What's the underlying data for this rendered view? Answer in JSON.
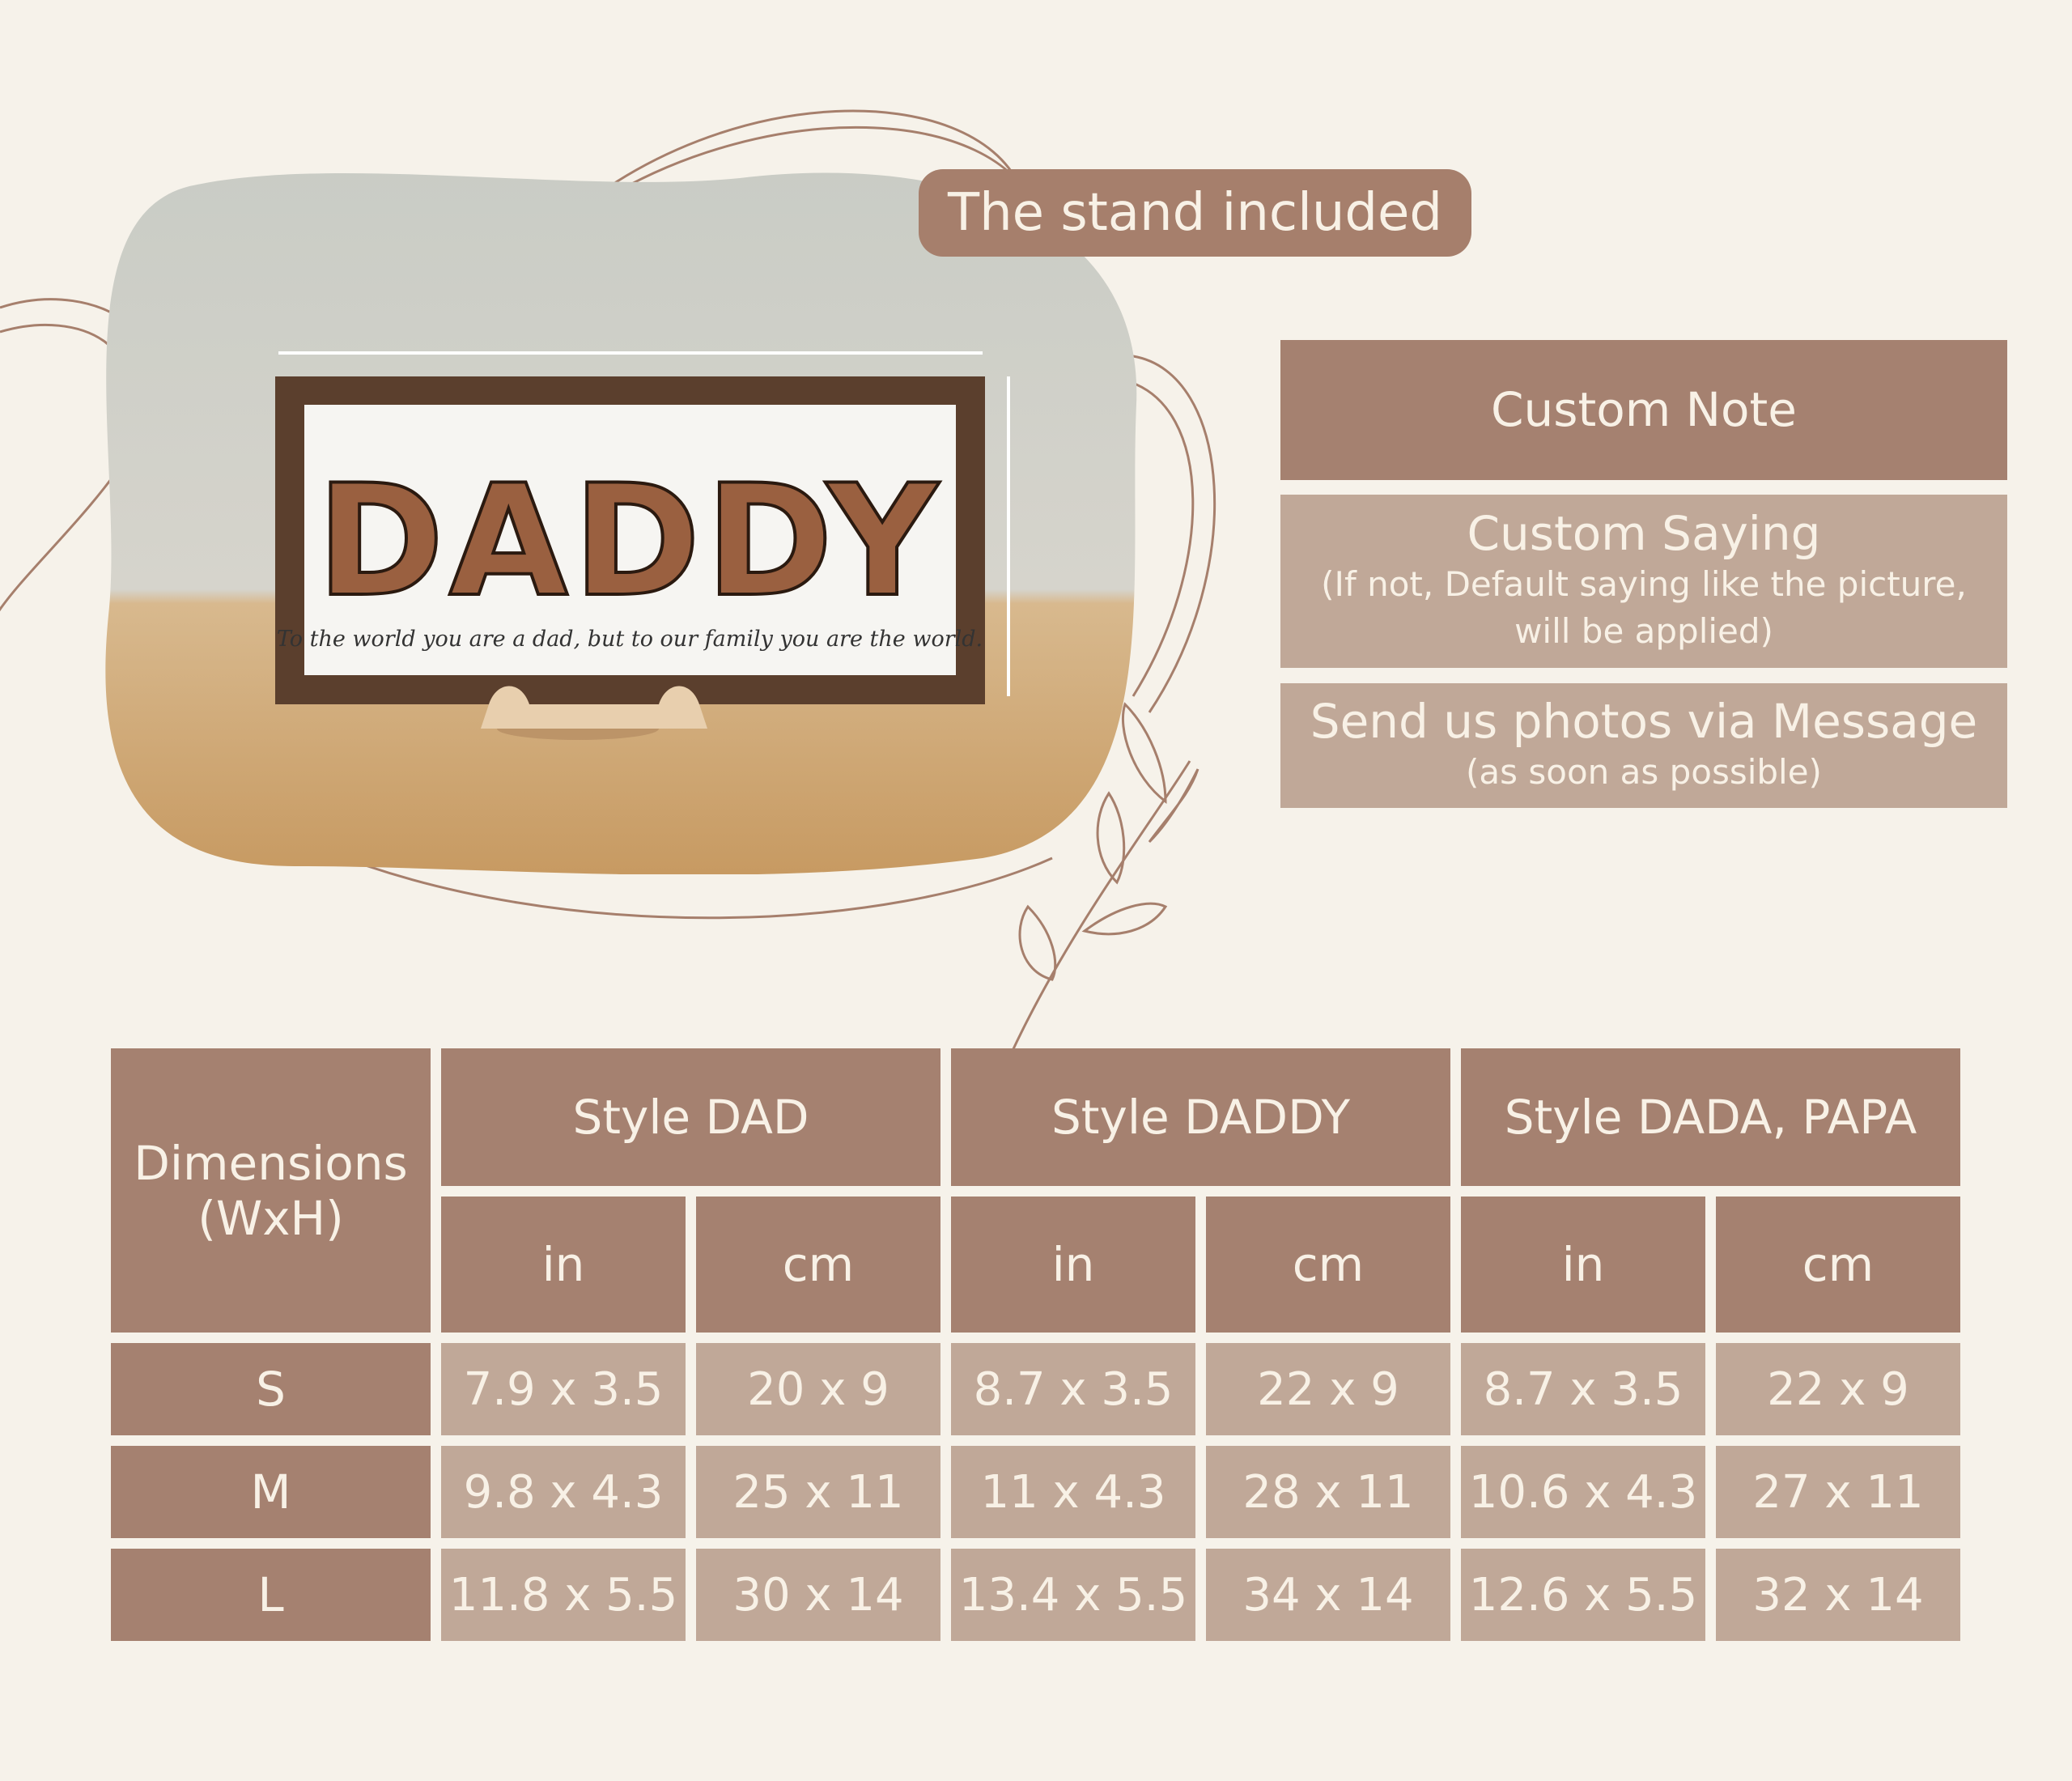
{
  "badge": {
    "text": "The stand included"
  },
  "product_photo": {
    "letters": "DADDY",
    "saying": "To the world you are a dad, but to our family you are the world."
  },
  "info_boxes": [
    {
      "title": "Custom Note"
    },
    {
      "title": "Custom Saying",
      "note": "(If not, Default saying like the picture,",
      "note2": "will be applied)"
    },
    {
      "title": "Send us photos via Message",
      "note": "(as soon as possible)"
    }
  ],
  "size_table": {
    "corner": "Dimensions (WxH)",
    "styles": [
      "Style DAD",
      "Style DADDY",
      "Style DADA, PAPA"
    ],
    "units": [
      "in",
      "cm",
      "in",
      "cm",
      "in",
      "cm"
    ],
    "rows": [
      {
        "size": "S",
        "values": [
          "7.9 x 3.5",
          "20 x 9",
          "8.7 x 3.5",
          "22 x 9",
          "8.7 x 3.5",
          "22 x 9"
        ]
      },
      {
        "size": "M",
        "values": [
          "9.8 x 4.3",
          "25 x 11",
          "11 x 4.3",
          "28 x 11",
          "10.6 x 4.3",
          "27 x 11"
        ]
      },
      {
        "size": "L",
        "values": [
          "11.8 x 5.5",
          "30 x 14",
          "13.4 x 5.5",
          "34 x 14",
          "12.6 x 5.5",
          "32 x 14"
        ]
      }
    ]
  },
  "colors": {
    "background": "#f6f2ea",
    "dark": "#a58170",
    "light": "#c0a898",
    "text": "#f8f1e6"
  }
}
